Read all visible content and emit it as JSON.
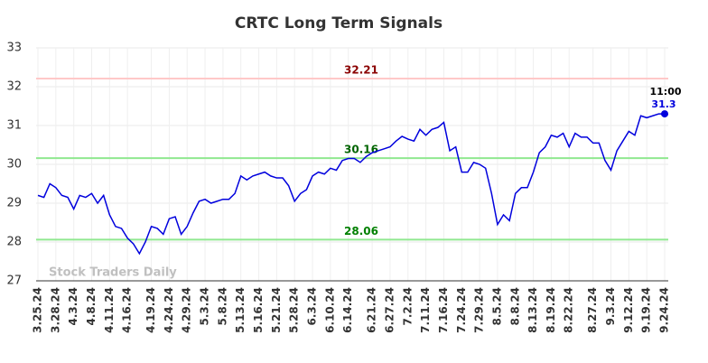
{
  "chart_data": {
    "type": "line",
    "title": "CRTC Long Term Signals",
    "categories": [
      "3.25.24",
      null,
      null,
      "3.28.24",
      null,
      null,
      "4.3.24",
      null,
      null,
      "4.8.24",
      null,
      null,
      "4.11.24",
      null,
      null,
      "4.16.24",
      null,
      null,
      null,
      "4.19.24",
      null,
      null,
      "4.24.24",
      null,
      null,
      "4.29.24",
      null,
      null,
      "5.3.24",
      null,
      null,
      "5.8.24",
      null,
      null,
      "5.13.24",
      null,
      null,
      "5.16.24",
      null,
      null,
      "5.21.24",
      null,
      null,
      "5.28.24",
      null,
      null,
      "6.3.24",
      null,
      null,
      "6.10.24",
      null,
      null,
      "6.14.24",
      null,
      null,
      null,
      "6.21.24",
      null,
      null,
      "6.27.24",
      null,
      null,
      "7.2.24",
      null,
      null,
      "7.11.24",
      null,
      null,
      "7.16.24",
      null,
      null,
      "7.24.24",
      null,
      null,
      "7.29.24",
      null,
      null,
      "8.5.24",
      null,
      null,
      "8.8.24",
      null,
      null,
      "8.13.24",
      null,
      null,
      "8.19.24",
      null,
      null,
      "8.22.24",
      null,
      null,
      null,
      "8.27.24",
      null,
      null,
      "9.3.24",
      null,
      null,
      "9.12.24",
      null,
      null,
      "9.19.24",
      null,
      null,
      "9.24.24"
    ],
    "values": [
      29.2,
      29.15,
      29.5,
      29.4,
      29.2,
      29.15,
      28.85,
      29.2,
      29.15,
      29.25,
      29.0,
      29.2,
      28.7,
      28.4,
      28.35,
      28.1,
      27.95,
      27.7,
      28.0,
      28.4,
      28.35,
      28.2,
      28.6,
      28.65,
      28.2,
      28.4,
      28.75,
      29.05,
      29.1,
      29.0,
      29.05,
      29.1,
      29.1,
      29.25,
      29.7,
      29.6,
      29.7,
      29.75,
      29.8,
      29.7,
      29.65,
      29.65,
      29.45,
      29.05,
      29.25,
      29.35,
      29.7,
      29.8,
      29.75,
      29.9,
      29.85,
      30.1,
      30.15,
      30.15,
      30.05,
      30.2,
      30.3,
      30.35,
      30.4,
      30.45,
      30.6,
      30.72,
      30.65,
      30.6,
      30.9,
      30.75,
      30.9,
      30.95,
      31.08,
      30.35,
      30.45,
      29.8,
      29.8,
      30.05,
      30.0,
      29.9,
      29.25,
      28.45,
      28.7,
      28.55,
      29.25,
      29.4,
      29.4,
      29.8,
      30.3,
      30.45,
      30.75,
      30.7,
      30.8,
      30.45,
      30.8,
      30.7,
      30.7,
      30.55,
      30.55,
      30.1,
      29.85,
      30.35,
      30.6,
      30.85,
      30.75,
      31.25,
      31.2,
      31.25,
      31.3,
      31.3
    ],
    "color": "#0000dd",
    "ylim": [
      27,
      33
    ],
    "yticks": [
      27,
      28,
      29,
      30,
      31,
      32,
      33
    ],
    "grid": true,
    "reference_lines": [
      {
        "value": 32.21,
        "color": "#ffc8c8",
        "label_color": "#8b0000"
      },
      {
        "value": 30.16,
        "color": "#90e890",
        "label_color": "#006400"
      },
      {
        "value": 28.06,
        "color": "#90e890",
        "label_color": "#008000"
      }
    ],
    "last_time_label": "11:00",
    "watermark": "Stock Traders Daily"
  }
}
